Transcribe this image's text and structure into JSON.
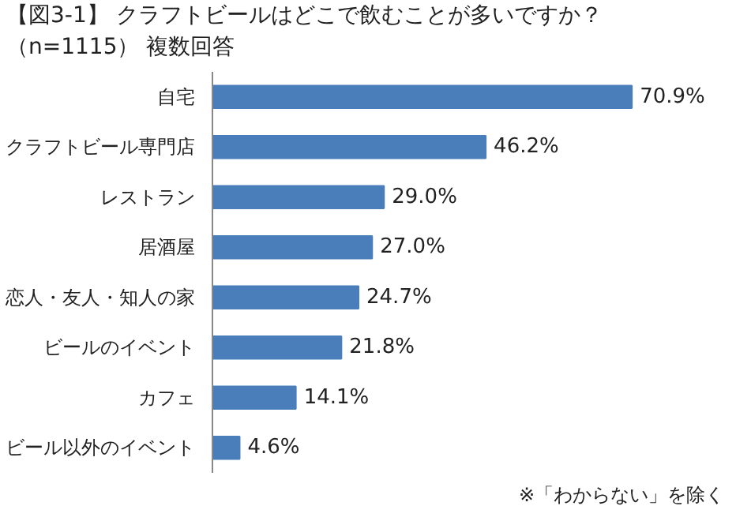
{
  "chart_data": {
    "type": "bar",
    "orientation": "horizontal",
    "title": "【図3-1】 クラフトビールはどこで飲むことが多いですか？",
    "subtitle": "（n=1115） 複数回答",
    "categories": [
      "自宅",
      "クラフトビール専門店",
      "レストラン",
      "居酒屋",
      "恋人・友人・知人の家",
      "ビールのイベント",
      "カフェ",
      "ビール以外のイベント"
    ],
    "values": [
      70.9,
      46.2,
      29.0,
      27.0,
      24.7,
      21.8,
      14.1,
      4.6
    ],
    "value_labels": [
      "70.9%",
      "46.2%",
      "29.0%",
      "27.0%",
      "24.7%",
      "21.8%",
      "14.1%",
      "4.6%"
    ],
    "color": "#4a7ebb",
    "grid": false,
    "tick_labels": "y",
    "annotations": [
      "※「わからない」を除く"
    ]
  }
}
